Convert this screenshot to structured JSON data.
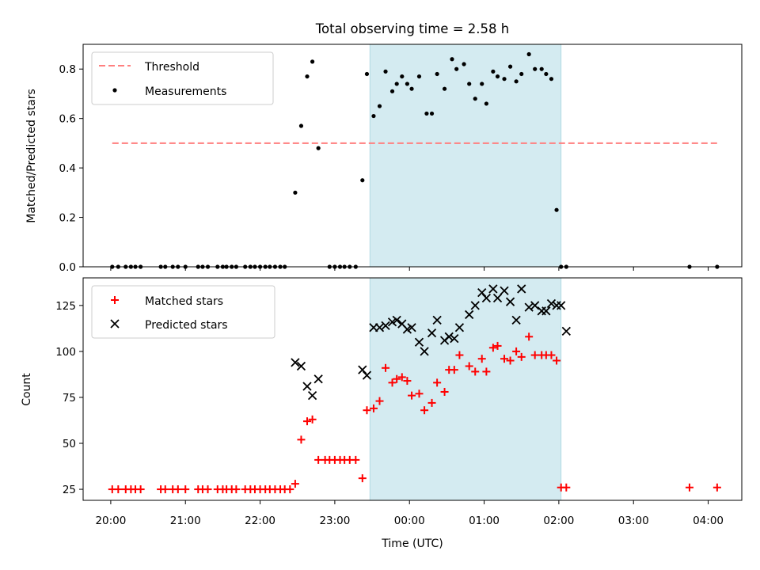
{
  "chart_data": [
    {
      "type": "scatter",
      "title": "Total observing time = 2.58 h",
      "ylabel": "Matched/Predicted stars",
      "ylim": [
        0,
        0.9
      ],
      "yticks": [
        0.0,
        0.2,
        0.4,
        0.6,
        0.8
      ],
      "ytick_labels": [
        "0.0",
        "0.2",
        "0.4",
        "0.6",
        "0.8"
      ],
      "legend_position": "upper left",
      "legend": [
        "Threshold",
        "Measurements"
      ],
      "threshold": {
        "name": "Threshold",
        "y": 0.5,
        "x_start": 0.02,
        "x_end": 8.12,
        "color": "#ff7f7f",
        "style": "dashed"
      },
      "series": [
        {
          "name": "Measurements",
          "color": "#000000",
          "x": [
            0.02,
            0.1,
            0.2,
            0.27,
            0.33,
            0.4,
            0.67,
            0.73,
            0.83,
            0.9,
            1.0,
            1.17,
            1.23,
            1.3,
            1.43,
            1.5,
            1.55,
            1.62,
            1.68,
            1.8,
            1.87,
            1.93,
            2.0,
            2.07,
            2.13,
            2.2,
            2.27,
            2.33,
            2.47,
            2.55,
            2.63,
            2.7,
            2.78,
            2.93,
            3.0,
            3.07,
            3.13,
            3.2,
            3.28,
            3.37,
            3.43,
            3.52,
            3.6,
            3.68,
            3.77,
            3.83,
            3.9,
            3.97,
            4.03,
            4.13,
            4.23,
            4.3,
            4.37,
            4.47,
            4.57,
            4.63,
            4.73,
            4.8,
            4.88,
            4.97,
            5.03,
            5.12,
            5.18,
            5.27,
            5.35,
            5.43,
            5.5,
            5.6,
            5.68,
            5.77,
            5.83,
            5.9,
            5.97,
            6.03,
            6.1,
            7.75,
            8.12
          ],
          "y": [
            0,
            0,
            0,
            0,
            0,
            0,
            0,
            0,
            0,
            0,
            0,
            0,
            0,
            0,
            0,
            0,
            0,
            0,
            0,
            0,
            0,
            0,
            0,
            0,
            0,
            0,
            0,
            0,
            0.3,
            0.57,
            0.77,
            0.83,
            0.48,
            0,
            0,
            0,
            0,
            0,
            0,
            0.35,
            0.78,
            0.61,
            0.65,
            0.79,
            0.71,
            0.74,
            0.77,
            0.74,
            0.72,
            0.77,
            0.62,
            0.62,
            0.78,
            0.72,
            0.84,
            0.8,
            0.82,
            0.74,
            0.68,
            0.74,
            0.66,
            0.79,
            0.77,
            0.76,
            0.81,
            0.75,
            0.78,
            0.86,
            0.8,
            0.8,
            0.78,
            0.76,
            0.23,
            0,
            0,
            0,
            0
          ]
        }
      ],
      "shaded_interval": {
        "x_start": 3.47,
        "x_end": 6.03,
        "color": "#d4ebf1"
      }
    },
    {
      "type": "scatter",
      "ylabel": "Count",
      "xlabel": "Time (UTC)",
      "ylim": [
        19,
        140
      ],
      "yticks": [
        25,
        50,
        75,
        100,
        125
      ],
      "ytick_labels": [
        "25",
        "50",
        "75",
        "100",
        "125"
      ],
      "xticks": [
        0,
        1,
        2,
        3,
        4,
        5,
        6,
        7,
        8
      ],
      "xtick_labels": [
        "20:00",
        "21:00",
        "22:00",
        "23:00",
        "00:00",
        "01:00",
        "02:00",
        "03:00",
        "04:00"
      ],
      "xlim": [
        -0.37,
        8.45
      ],
      "legend_position": "upper left",
      "legend": [
        "Matched stars",
        "Predicted stars"
      ],
      "series": [
        {
          "name": "Matched stars",
          "color": "#ff0000",
          "marker": "+",
          "x": [
            0.02,
            0.1,
            0.2,
            0.27,
            0.33,
            0.4,
            0.67,
            0.73,
            0.83,
            0.9,
            1.0,
            1.17,
            1.23,
            1.3,
            1.43,
            1.5,
            1.55,
            1.62,
            1.68,
            1.8,
            1.87,
            1.93,
            2.0,
            2.07,
            2.13,
            2.2,
            2.27,
            2.33,
            2.4,
            2.47,
            2.55,
            2.63,
            2.7,
            2.78,
            2.87,
            2.93,
            3.0,
            3.07,
            3.13,
            3.2,
            3.28,
            3.37,
            3.43,
            3.52,
            3.6,
            3.68,
            3.77,
            3.83,
            3.9,
            3.97,
            4.03,
            4.13,
            4.2,
            4.3,
            4.37,
            4.47,
            4.53,
            4.6,
            4.67,
            4.8,
            4.88,
            4.97,
            5.03,
            5.12,
            5.18,
            5.27,
            5.35,
            5.43,
            5.5,
            5.6,
            5.68,
            5.77,
            5.83,
            5.9,
            5.97,
            6.03,
            6.1,
            7.75,
            8.12
          ],
          "y": [
            25,
            25,
            25,
            25,
            25,
            25,
            25,
            25,
            25,
            25,
            25,
            25,
            25,
            25,
            25,
            25,
            25,
            25,
            25,
            25,
            25,
            25,
            25,
            25,
            25,
            25,
            25,
            25,
            25,
            28,
            52,
            62,
            63,
            41,
            41,
            41,
            41,
            41,
            41,
            41,
            41,
            31,
            68,
            69,
            73,
            91,
            83,
            85,
            86,
            84,
            76,
            77,
            68,
            72,
            83,
            78,
            90,
            90,
            98,
            92,
            89,
            96,
            89,
            102,
            103,
            96,
            95,
            100,
            97,
            108,
            98,
            98,
            98,
            98,
            95,
            26,
            26,
            26,
            26
          ]
        },
        {
          "name": "Predicted stars",
          "color": "#000000",
          "marker": "x",
          "x": [
            2.47,
            2.55,
            2.63,
            2.7,
            2.78,
            3.37,
            3.43,
            3.52,
            3.6,
            3.68,
            3.77,
            3.83,
            3.9,
            3.97,
            4.03,
            4.13,
            4.2,
            4.3,
            4.37,
            4.47,
            4.53,
            4.6,
            4.67,
            4.8,
            4.88,
            4.97,
            5.03,
            5.12,
            5.18,
            5.27,
            5.35,
            5.43,
            5.5,
            5.6,
            5.68,
            5.77,
            5.83,
            5.9,
            5.97,
            6.03,
            6.1
          ],
          "y": [
            94,
            92,
            81,
            76,
            85,
            90,
            87,
            113,
            113,
            114,
            116,
            117,
            115,
            112,
            113,
            105,
            100,
            110,
            117,
            106,
            108,
            107,
            113,
            120,
            125,
            132,
            129,
            134,
            129,
            133,
            127,
            117,
            134,
            124,
            125,
            122,
            122,
            126,
            125,
            125,
            111
          ]
        }
      ],
      "shaded_interval": {
        "x_start": 3.47,
        "x_end": 6.03,
        "color": "#d4ebf1"
      }
    }
  ]
}
